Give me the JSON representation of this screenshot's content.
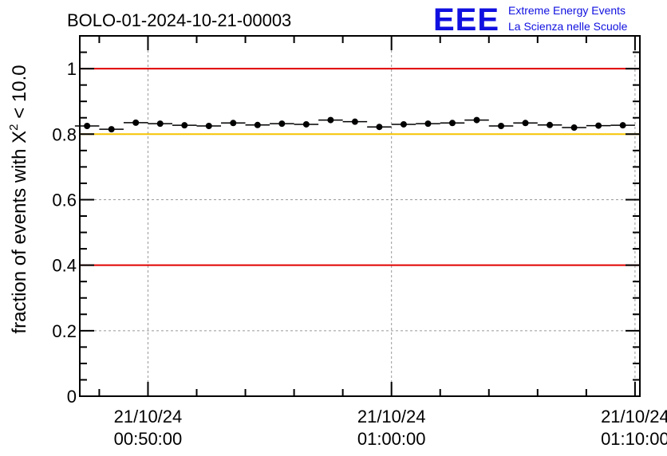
{
  "title": "BOLO-01-2024-10-21-00003",
  "logo": {
    "mark": "EEE",
    "line1": "Extreme Energy Events",
    "line2": "La Scienza nelle Scuole",
    "color": "#1010e0"
  },
  "chart_data": {
    "type": "scatter",
    "title": "BOLO-01-2024-10-21-00003",
    "ylabel_prefix": "fraction of events with ",
    "ylabel_symbol": "X",
    "ylabel_sup": "2",
    "ylabel_suffix": " < 10.0",
    "ylim": [
      0,
      1.1
    ],
    "yticks": [
      {
        "v": 0,
        "label": "0"
      },
      {
        "v": 0.2,
        "label": "0.2"
      },
      {
        "v": 0.4,
        "label": "0.4"
      },
      {
        "v": 0.6,
        "label": "0.6"
      },
      {
        "v": 0.8,
        "label": "0.8"
      },
      {
        "v": 1,
        "label": "1"
      }
    ],
    "xlim_minutes": [
      47.2,
      70.2
    ],
    "xticks": [
      {
        "t": 50,
        "date": "21/10/24",
        "time": "00:50:00"
      },
      {
        "t": 60,
        "date": "21/10/24",
        "time": "01:00:00"
      },
      {
        "t": 70,
        "date": "21/10/24",
        "time": "01:10:00"
      }
    ],
    "grid": true,
    "reference_lines": [
      {
        "y": 1.0,
        "color": "#e00000"
      },
      {
        "y": 0.8,
        "color": "#f5c400"
      },
      {
        "y": 0.4,
        "color": "#e00000"
      }
    ],
    "bin_width_minutes": 1,
    "series": [
      {
        "x": [
          47.5,
          48.5,
          49.5,
          50.5,
          51.5,
          52.5,
          53.5,
          54.5,
          55.5,
          56.5,
          57.5,
          58.5,
          59.5,
          60.5,
          61.5,
          62.5,
          63.5,
          64.5,
          65.5,
          66.5,
          67.5,
          68.5,
          69.5
        ],
        "values": [
          0.825,
          0.815,
          0.835,
          0.832,
          0.827,
          0.825,
          0.834,
          0.828,
          0.832,
          0.83,
          0.843,
          0.838,
          0.822,
          0.83,
          0.832,
          0.834,
          0.843,
          0.825,
          0.834,
          0.828,
          0.82,
          0.826,
          0.827
        ],
        "color": "#000000"
      }
    ]
  }
}
